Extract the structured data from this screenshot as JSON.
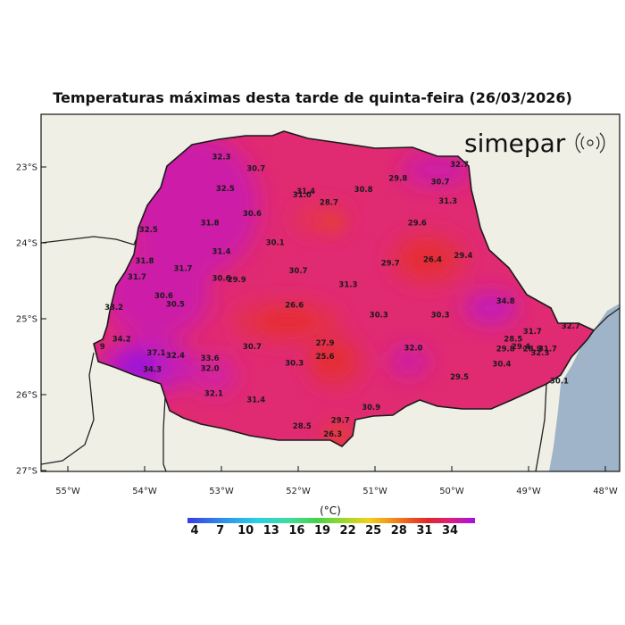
{
  "title": "Temperaturas máximas desta tarde de quinta-feira (26/03/2026)",
  "brand": "simepar",
  "lat_labels": [
    "23°S",
    "24°S",
    "25°S",
    "26°S",
    "27°S"
  ],
  "lon_labels": [
    "55°W",
    "54°W",
    "53°W",
    "52°W",
    "51°W",
    "50°W",
    "49°W",
    "48°W"
  ],
  "legend": {
    "unit": "(°C)",
    "ticks": [
      "4",
      "7",
      "10",
      "13",
      "16",
      "19",
      "22",
      "25",
      "28",
      "31",
      "34"
    ]
  },
  "colors": {
    "ocean": "#9fb4c9",
    "land_outside": "#f0efe6",
    "state_base": "#e02a72",
    "hot_purple": "#c218c2",
    "warm_red": "#e8323c"
  },
  "station_values": [
    {
      "lon": -53.0,
      "lat": -22.9,
      "value": "32.3"
    },
    {
      "lon": -52.55,
      "lat": -23.05,
      "value": "30.7"
    },
    {
      "lon": -49.9,
      "lat": -23.0,
      "value": "32.7"
    },
    {
      "lon": -50.7,
      "lat": -23.18,
      "value": "29.8"
    },
    {
      "lon": -50.15,
      "lat": -23.23,
      "value": "30.7"
    },
    {
      "lon": -52.95,
      "lat": -23.32,
      "value": "32.5"
    },
    {
      "lon": -51.9,
      "lat": -23.35,
      "value": "31.4"
    },
    {
      "lon": -51.95,
      "lat": -23.4,
      "value": "31.0"
    },
    {
      "lon": -51.15,
      "lat": -23.33,
      "value": "30.8"
    },
    {
      "lon": -51.6,
      "lat": -23.5,
      "value": "28.7"
    },
    {
      "lon": -50.05,
      "lat": -23.48,
      "value": "31.3"
    },
    {
      "lon": -52.6,
      "lat": -23.65,
      "value": "30.6"
    },
    {
      "lon": -53.15,
      "lat": -23.77,
      "value": "31.8"
    },
    {
      "lon": -50.45,
      "lat": -23.77,
      "value": "29.6"
    },
    {
      "lon": -53.95,
      "lat": -23.86,
      "value": "32.5"
    },
    {
      "lon": -52.3,
      "lat": -24.03,
      "value": "30.1"
    },
    {
      "lon": -53.0,
      "lat": -24.15,
      "value": "31.4"
    },
    {
      "lon": -49.85,
      "lat": -24.2,
      "value": "29.4"
    },
    {
      "lon": -50.25,
      "lat": -24.25,
      "value": "26.4"
    },
    {
      "lon": -50.8,
      "lat": -24.3,
      "value": "29.7"
    },
    {
      "lon": -54.0,
      "lat": -24.27,
      "value": "31.8"
    },
    {
      "lon": -53.5,
      "lat": -24.37,
      "value": "31.7"
    },
    {
      "lon": -52.0,
      "lat": -24.4,
      "value": "30.7"
    },
    {
      "lon": -54.1,
      "lat": -24.48,
      "value": "31.7"
    },
    {
      "lon": -53.0,
      "lat": -24.5,
      "value": "30.6"
    },
    {
      "lon": -52.8,
      "lat": -24.52,
      "value": "29.9"
    },
    {
      "lon": -51.35,
      "lat": -24.58,
      "value": "31.3"
    },
    {
      "lon": -53.75,
      "lat": -24.73,
      "value": "30.6"
    },
    {
      "lon": -53.6,
      "lat": -24.84,
      "value": "30.5"
    },
    {
      "lon": -49.3,
      "lat": -24.8,
      "value": "34.8"
    },
    {
      "lon": -52.05,
      "lat": -24.85,
      "value": "26.6"
    },
    {
      "lon": -54.4,
      "lat": -24.88,
      "value": "33.2"
    },
    {
      "lon": -50.95,
      "lat": -24.98,
      "value": "30.3"
    },
    {
      "lon": -50.15,
      "lat": -24.98,
      "value": "30.3"
    },
    {
      "lon": -48.45,
      "lat": -25.13,
      "value": "32.7"
    },
    {
      "lon": -48.95,
      "lat": -25.2,
      "value": "31.7"
    },
    {
      "lon": -54.3,
      "lat": -25.3,
      "value": "34.2"
    },
    {
      "lon": -49.2,
      "lat": -25.3,
      "value": "28.5"
    },
    {
      "lon": -51.65,
      "lat": -25.35,
      "value": "27.9"
    },
    {
      "lon": -54.55,
      "lat": -25.4,
      "value": "9"
    },
    {
      "lon": -52.6,
      "lat": -25.4,
      "value": "30.7"
    },
    {
      "lon": -50.5,
      "lat": -25.42,
      "value": "32.0"
    },
    {
      "lon": -49.1,
      "lat": -25.4,
      "value": "29.4"
    },
    {
      "lon": -49.3,
      "lat": -25.43,
      "value": "29.8"
    },
    {
      "lon": -48.95,
      "lat": -25.43,
      "value": "28.9"
    },
    {
      "lon": -48.75,
      "lat": -25.43,
      "value": "31.7"
    },
    {
      "lon": -48.85,
      "lat": -25.48,
      "value": "32.3"
    },
    {
      "lon": -53.85,
      "lat": -25.48,
      "value": "37.1"
    },
    {
      "lon": -53.6,
      "lat": -25.52,
      "value": "32.4"
    },
    {
      "lon": -53.15,
      "lat": -25.55,
      "value": "33.6"
    },
    {
      "lon": -51.65,
      "lat": -25.53,
      "value": "25.6"
    },
    {
      "lon": -52.05,
      "lat": -25.62,
      "value": "30.3"
    },
    {
      "lon": -49.35,
      "lat": -25.63,
      "value": "30.4"
    },
    {
      "lon": -53.9,
      "lat": -25.7,
      "value": "34.3"
    },
    {
      "lon": -53.15,
      "lat": -25.69,
      "value": "32.0"
    },
    {
      "lon": -49.9,
      "lat": -25.8,
      "value": "29.5"
    },
    {
      "lon": -48.6,
      "lat": -25.85,
      "value": "30.1"
    },
    {
      "lon": -53.1,
      "lat": -26.02,
      "value": "32.1"
    },
    {
      "lon": -52.55,
      "lat": -26.1,
      "value": "31.4"
    },
    {
      "lon": -51.05,
      "lat": -26.2,
      "value": "30.9"
    },
    {
      "lon": -51.45,
      "lat": -26.37,
      "value": "29.7"
    },
    {
      "lon": -51.95,
      "lat": -26.45,
      "value": "28.5"
    },
    {
      "lon": -51.55,
      "lat": -26.55,
      "value": "26.3"
    }
  ]
}
